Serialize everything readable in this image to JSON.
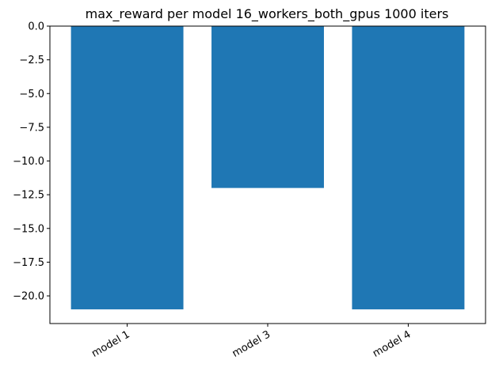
{
  "chart_data": {
    "type": "bar",
    "title": "max_reward per model 16_workers_both_gpus 1000 iters",
    "xlabel": "",
    "ylabel": "",
    "categories": [
      "model 1",
      "model 3",
      "model 4"
    ],
    "values": [
      -21,
      -12,
      -21
    ],
    "ylim": [
      -22.05,
      0
    ],
    "yticks": [
      0.0,
      -2.5,
      -5.0,
      -7.5,
      -10.0,
      -12.5,
      -15.0,
      -17.5,
      -20.0
    ],
    "ytick_labels": [
      "0.0",
      "−2.5",
      "−5.0",
      "−7.5",
      "−10.0",
      "−12.5",
      "−15.0",
      "−17.5",
      "−20.0"
    ],
    "bar_color": "#1f77b4",
    "grid": false,
    "legend": "none"
  }
}
